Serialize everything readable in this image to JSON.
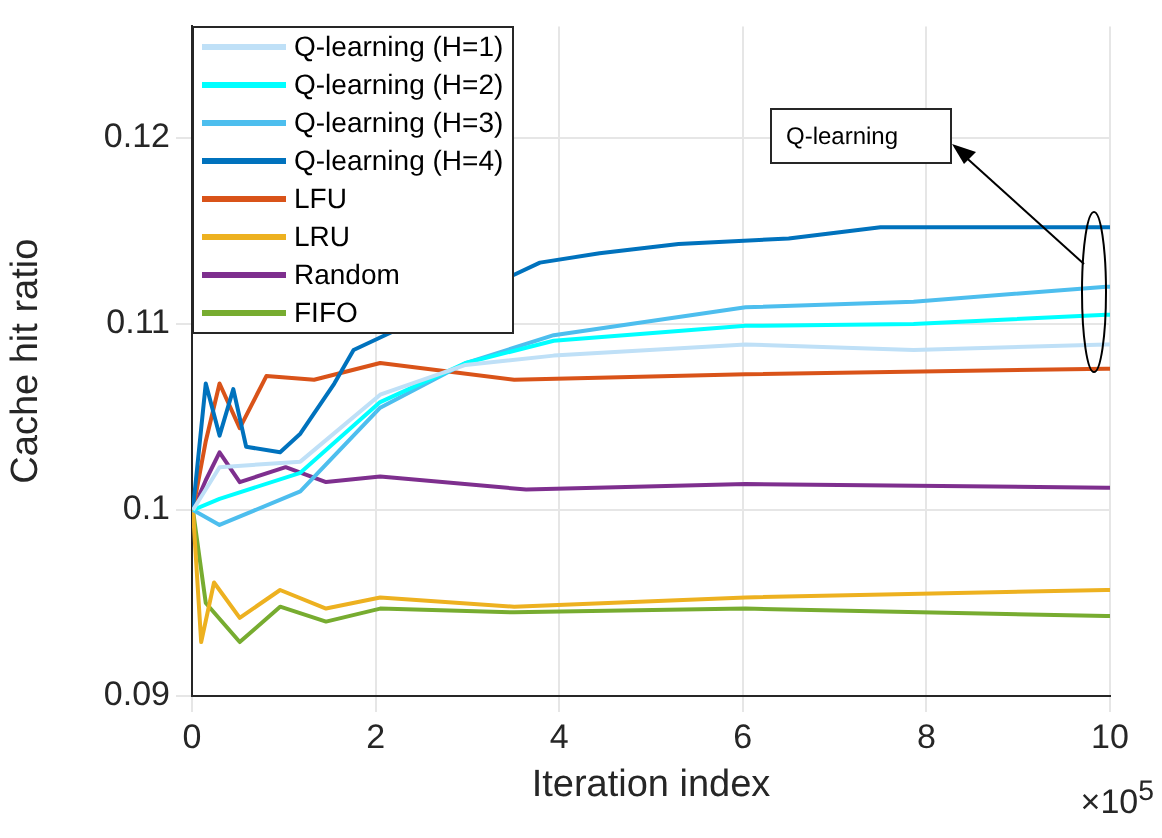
{
  "chart_data": {
    "type": "line",
    "xlabel": "Iteration index",
    "ylabel": "Cache hit ratio",
    "xlim": [
      0,
      10
    ],
    "xticks": [
      0,
      2,
      4,
      6,
      8,
      10
    ],
    "ylim": [
      0.09,
      0.126
    ],
    "yticks": [
      0.09,
      0.1,
      0.11,
      0.12
    ],
    "grid": true,
    "legend": "top left",
    "annotations": [
      "Q-learning",
      "×10$^{5}$"
    ],
    "series": [
      {
        "name": "Q-learning (H=1)",
        "color": "#bfe0f7",
        "x": [
          0.01,
          0.3,
          1.18,
          2.05,
          2.98,
          3.94,
          6.03,
          7.86,
          9.96,
          10
        ],
        "values": [
          0.1,
          0.1023,
          0.1026,
          0.1062,
          0.1078,
          0.1083,
          0.1089,
          0.1086,
          0.1089,
          0.1089
        ]
      },
      {
        "name": "Q-learning (H=2)",
        "color": "#00ffff",
        "x": [
          0.01,
          0.3,
          1.18,
          2.05,
          2.98,
          3.94,
          6.03,
          7.86,
          9.96,
          10
        ],
        "values": [
          0.1,
          0.1006,
          0.102,
          0.1058,
          0.1079,
          0.1091,
          0.1099,
          0.11,
          0.1105,
          0.1105
        ]
      },
      {
        "name": "Q-learning (H=3)",
        "color": "#4dbeee",
        "x": [
          0.01,
          0.3,
          1.18,
          2.05,
          2.98,
          3.94,
          6.03,
          7.86,
          9.96,
          10
        ],
        "values": [
          0.1,
          0.0992,
          0.101,
          0.1055,
          0.1079,
          0.1094,
          0.1109,
          0.1112,
          0.112,
          0.112
        ]
      },
      {
        "name": "Q-learning (H=4)",
        "color": "#0072bd",
        "x": [
          0.01,
          0.03,
          0.15,
          0.3,
          0.45,
          0.59,
          0.96,
          1.18,
          1.55,
          1.76,
          3.79,
          4.44,
          5.3,
          6.5,
          7.5,
          8.5,
          10
        ],
        "values": [
          0.1,
          0.101,
          0.1068,
          0.104,
          0.1065,
          0.1034,
          0.1031,
          0.1041,
          0.1068,
          0.1086,
          0.1133,
          0.1138,
          0.1143,
          0.1146,
          0.1152,
          0.1152,
          0.1152
        ]
      },
      {
        "name": "LFU",
        "color": "#d95319",
        "x": [
          0.01,
          0.15,
          0.3,
          0.52,
          0.81,
          1.33,
          2.05,
          3.51,
          6.03,
          9.96,
          10
        ],
        "values": [
          0.1,
          0.1037,
          0.1068,
          0.1044,
          0.1072,
          0.107,
          0.1079,
          0.107,
          0.1073,
          0.1076,
          0.1076
        ]
      },
      {
        "name": "LRU",
        "color": "#edb120",
        "x": [
          0.01,
          0.1,
          0.24,
          0.52,
          0.96,
          1.46,
          2.05,
          3.51,
          6.03,
          9.96,
          10
        ],
        "values": [
          0.1,
          0.0929,
          0.0961,
          0.0942,
          0.0957,
          0.0947,
          0.0953,
          0.0948,
          0.0953,
          0.0957,
          0.0957
        ]
      },
      {
        "name": "Random",
        "color": "#7e2f8e",
        "x": [
          0.01,
          0.15,
          0.3,
          0.52,
          1.02,
          1.46,
          2.05,
          3.64,
          6.03,
          9.96,
          10
        ],
        "values": [
          0.1,
          0.1016,
          0.1031,
          0.1015,
          0.1023,
          0.1015,
          0.1018,
          0.1011,
          0.1014,
          0.1012,
          0.1012
        ]
      },
      {
        "name": "FIFO",
        "color": "#77ac30",
        "x": [
          0.01,
          0.15,
          0.52,
          0.96,
          1.46,
          2.05,
          3.51,
          6.03,
          9.96,
          10
        ],
        "values": [
          0.1,
          0.095,
          0.0929,
          0.0948,
          0.094,
          0.0947,
          0.0945,
          0.0947,
          0.0943,
          0.0943
        ]
      }
    ]
  }
}
